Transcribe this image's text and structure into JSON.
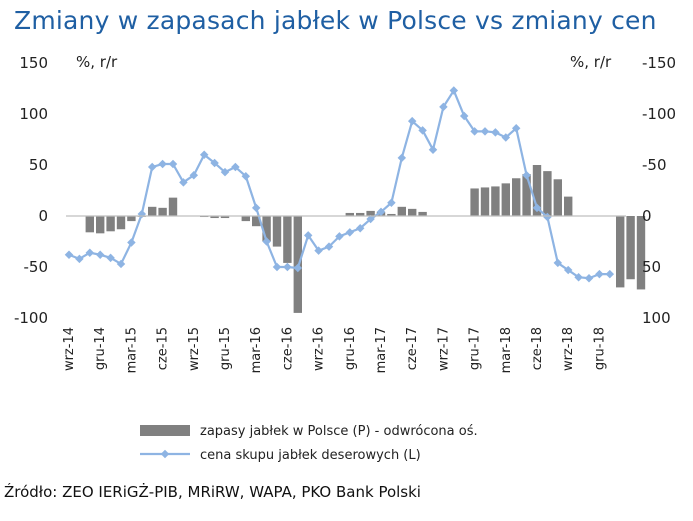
{
  "title": "Zmiany w zapasach jabłek w Polsce vs zmiany cen",
  "source": "Źródło: ZEO IERiGŻ-PIB, MRiRW, WAPA, PKO Bank Polski",
  "colors": {
    "title": "#1f5fa3",
    "bars": "#808080",
    "line": "#8eb4e3",
    "axis": "#bfbfbf"
  },
  "chart_data": {
    "type": "bar+line",
    "left_axis": {
      "unit": "%, r/r",
      "ylim": [
        -100,
        150
      ],
      "ticks": [
        "150",
        "100",
        "50",
        "0",
        "-50",
        "-100"
      ]
    },
    "right_axis": {
      "unit": "%, r/r",
      "reversed": true,
      "ylim": [
        100,
        -150
      ],
      "ticks": [
        "-150",
        "-100",
        "-50",
        "0",
        "50",
        "100"
      ]
    },
    "x_tick_labels": [
      "wrz-14",
      "gru-14",
      "mar-15",
      "cze-15",
      "wrz-15",
      "gru-15",
      "mar-16",
      "cze-16",
      "wrz-16",
      "gru-16",
      "mar-17",
      "cze-17",
      "wrz-17",
      "gru-17",
      "mar-18",
      "cze-18",
      "wrz-18",
      "gru-18"
    ],
    "series": [
      {
        "name": "zapasy jabłek w Polsce (P) - odwrócona oś.",
        "type": "bar",
        "axis": "right",
        "values": [
          null,
          null,
          16,
          17,
          15,
          13,
          5,
          0,
          -9,
          -8,
          -18,
          null,
          null,
          1,
          2,
          2,
          null,
          5,
          10,
          25,
          30,
          46,
          95,
          null,
          null,
          null,
          null,
          -3,
          -3,
          -5,
          -4,
          -2,
          -9,
          -7,
          -4,
          null,
          null,
          null,
          null,
          -27,
          -28,
          -29,
          -32,
          -37,
          -41,
          -50,
          -44,
          -36,
          -19,
          null,
          null,
          null,
          null,
          70,
          62,
          72
        ]
      },
      {
        "name": "cena skupu jabłek deserowych (L)",
        "type": "line",
        "axis": "left",
        "values": [
          -38,
          -42,
          -36,
          -38,
          -41,
          -47,
          -26,
          2,
          48,
          51,
          51,
          33,
          40,
          60,
          52,
          43,
          48,
          39,
          8,
          -25,
          -50,
          -50,
          -51,
          -19,
          -34,
          -30,
          -20,
          -16,
          -12,
          -3,
          4,
          13,
          57,
          93,
          84,
          65,
          107,
          123,
          98,
          83,
          83,
          82,
          77,
          86,
          40,
          8,
          -1,
          -46,
          -53,
          -60,
          -61,
          -57,
          -57
        ]
      }
    ]
  }
}
